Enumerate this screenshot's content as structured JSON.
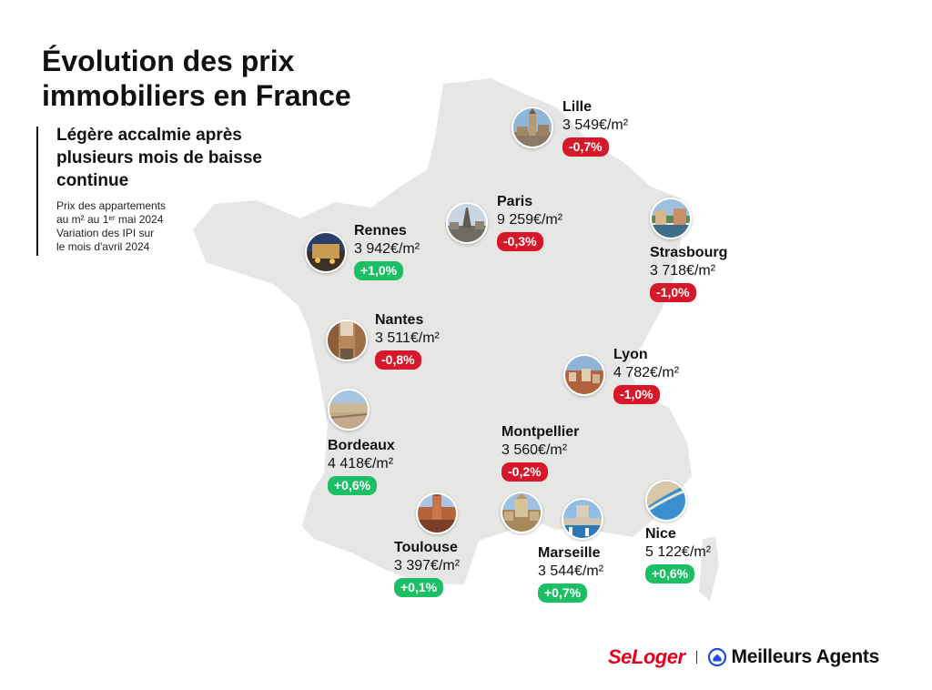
{
  "header": {
    "title_line1": "Évolution des prix",
    "title_line2": "immobiliers en France",
    "subtitle_line1": "Légère accalmie après",
    "subtitle_line2": "plusieurs mois de baisse",
    "subtitle_line3": "continue",
    "note_line1": "Prix des appartements",
    "note_line2": "au m² au 1ᵉʳ mai 2024",
    "note_line3": "Variation des IPI sur",
    "note_line4": "le mois d'avril 2024"
  },
  "cities": [
    {
      "name": "Lille",
      "price": "3 549€/m²",
      "change": "-0,7%",
      "trend": "negative"
    },
    {
      "name": "Paris",
      "price": "9 259€/m²",
      "change": "-0,3%",
      "trend": "negative"
    },
    {
      "name": "Strasbourg",
      "price": "3 718€/m²",
      "change": "-1,0%",
      "trend": "negative"
    },
    {
      "name": "Rennes",
      "price": "3 942€/m²",
      "change": "+1,0%",
      "trend": "positive"
    },
    {
      "name": "Nantes",
      "price": "3 511€/m²",
      "change": "-0,8%",
      "trend": "negative"
    },
    {
      "name": "Lyon",
      "price": "4 782€/m²",
      "change": "-1,0%",
      "trend": "negative"
    },
    {
      "name": "Bordeaux",
      "price": "4 418€/m²",
      "change": "+0,6%",
      "trend": "positive"
    },
    {
      "name": "Montpellier",
      "price": "3 560€/m²",
      "change": "-0,2%",
      "trend": "negative"
    },
    {
      "name": "Toulouse",
      "price": "3 397€/m²",
      "change": "+0,1%",
      "trend": "positive"
    },
    {
      "name": "Marseille",
      "price": "3 544€/m²",
      "change": "+0,7%",
      "trend": "positive"
    },
    {
      "name": "Nice",
      "price": "5 122€/m²",
      "change": "+0,6%",
      "trend": "positive"
    }
  ],
  "footer": {
    "logo_seloger": "SeLoger",
    "logo_meilleurs_agents": "Meilleurs Agents"
  },
  "colors": {
    "map_fill": "#e6e6e4",
    "negative": "#d6192a",
    "positive": "#1dbf65",
    "seloger_red": "#e3001b",
    "meilleurs_agents_blue": "#1f4ee0"
  }
}
